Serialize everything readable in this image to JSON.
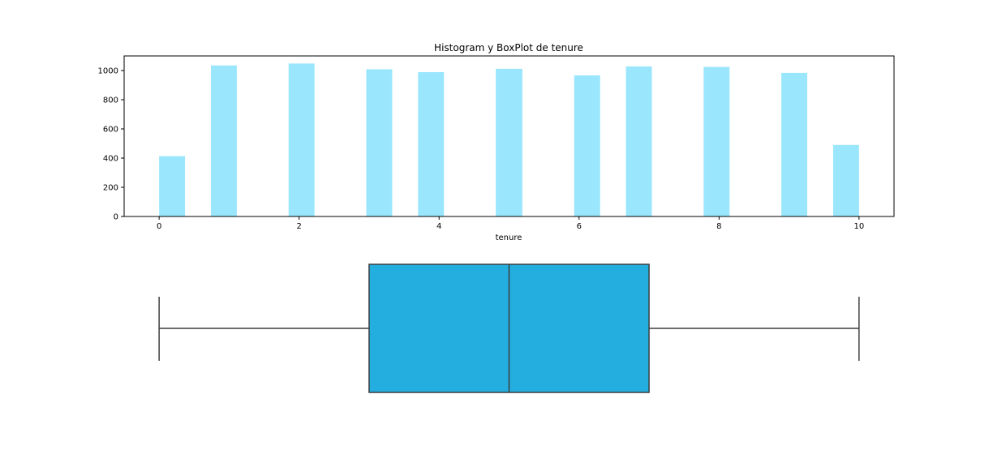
{
  "chart_data": [
    {
      "type": "bar",
      "title": "Histogram y BoxPlot de tenure",
      "xlabel": "tenure",
      "ylabel": "",
      "xlim": [
        -0.5,
        10.5
      ],
      "ylim": [
        0,
        1100
      ],
      "xticks": [
        0,
        2,
        4,
        6,
        8,
        10
      ],
      "yticks": [
        0,
        200,
        400,
        600,
        800,
        1000
      ],
      "grid": false,
      "bar_color": "#9ae6fd",
      "bins": [
        {
          "x0": 0.0,
          "x1": 0.37,
          "value": 413
        },
        {
          "x0": 0.74,
          "x1": 1.11,
          "value": 1035
        },
        {
          "x0": 1.85,
          "x1": 2.22,
          "value": 1048
        },
        {
          "x0": 2.96,
          "x1": 3.33,
          "value": 1009
        },
        {
          "x0": 3.7,
          "x1": 4.07,
          "value": 989
        },
        {
          "x0": 4.81,
          "x1": 5.19,
          "value": 1012
        },
        {
          "x0": 5.93,
          "x1": 6.3,
          "value": 967
        },
        {
          "x0": 6.67,
          "x1": 7.04,
          "value": 1028
        },
        {
          "x0": 7.78,
          "x1": 8.15,
          "value": 1025
        },
        {
          "x0": 8.89,
          "x1": 9.26,
          "value": 984
        },
        {
          "x0": 9.63,
          "x1": 10.0,
          "value": 490
        }
      ]
    },
    {
      "type": "box",
      "orientation": "horizontal",
      "whisker_low": 0,
      "q1": 3,
      "median": 5,
      "q3": 7,
      "whisker_high": 10,
      "box_color": "#23aedf",
      "line_color": "#3d3d3d"
    }
  ]
}
